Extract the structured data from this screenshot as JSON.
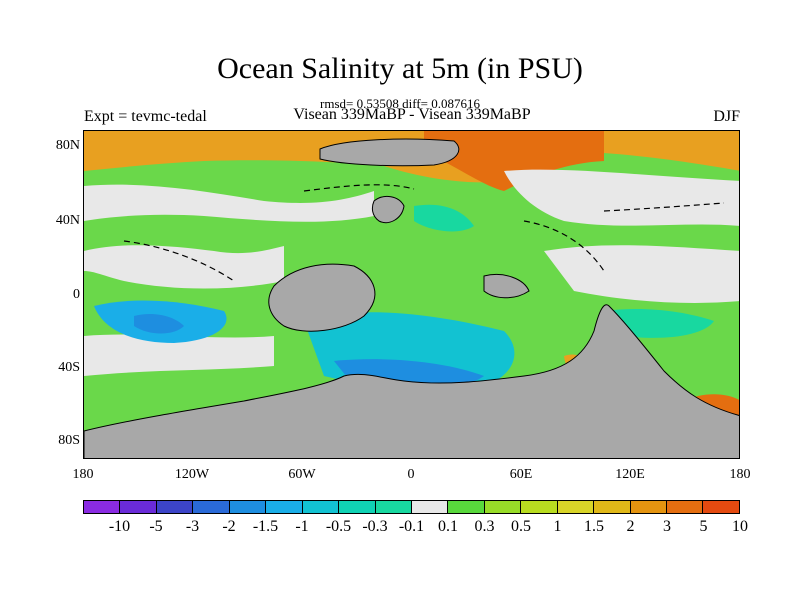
{
  "title": "Ocean Salinity at 5m (in PSU)",
  "subtitle": "rmsd= 0.53508 diff= 0.087616",
  "experiment": "Expt = tevmc-tedal",
  "run_label": "Visean 339MaBP - Visean 339MaBP",
  "season": "DJF",
  "colors": {
    "land": "#a8a8a8",
    "neutral": "#e8e8e8",
    "ramp": [
      "#8a2be2",
      "#6a2bd8",
      "#3c44c8",
      "#2a6ad8",
      "#1e8ee0",
      "#1aaee8",
      "#12c2d2",
      "#10d2b4",
      "#18d8a0",
      "#e8e8e8",
      "#58d83c",
      "#98dc28",
      "#b8dc20",
      "#d8d428",
      "#e0b818",
      "#e49410",
      "#e46e10",
      "#e44a10"
    ]
  },
  "map": {
    "lat_ticks": [
      "80N",
      "40N",
      "0",
      "40S",
      "80S"
    ],
    "lon_ticks": [
      "180",
      "120W",
      "60W",
      "0",
      "60E",
      "120E",
      "180"
    ]
  },
  "colorbar": {
    "labels": [
      "-10",
      "-5",
      "-3",
      "-2",
      "-1.5",
      "-1",
      "-0.5",
      "-0.3",
      "-0.1",
      "0.1",
      "0.3",
      "0.5",
      "1",
      "1.5",
      "2",
      "3",
      "5",
      "10"
    ]
  }
}
